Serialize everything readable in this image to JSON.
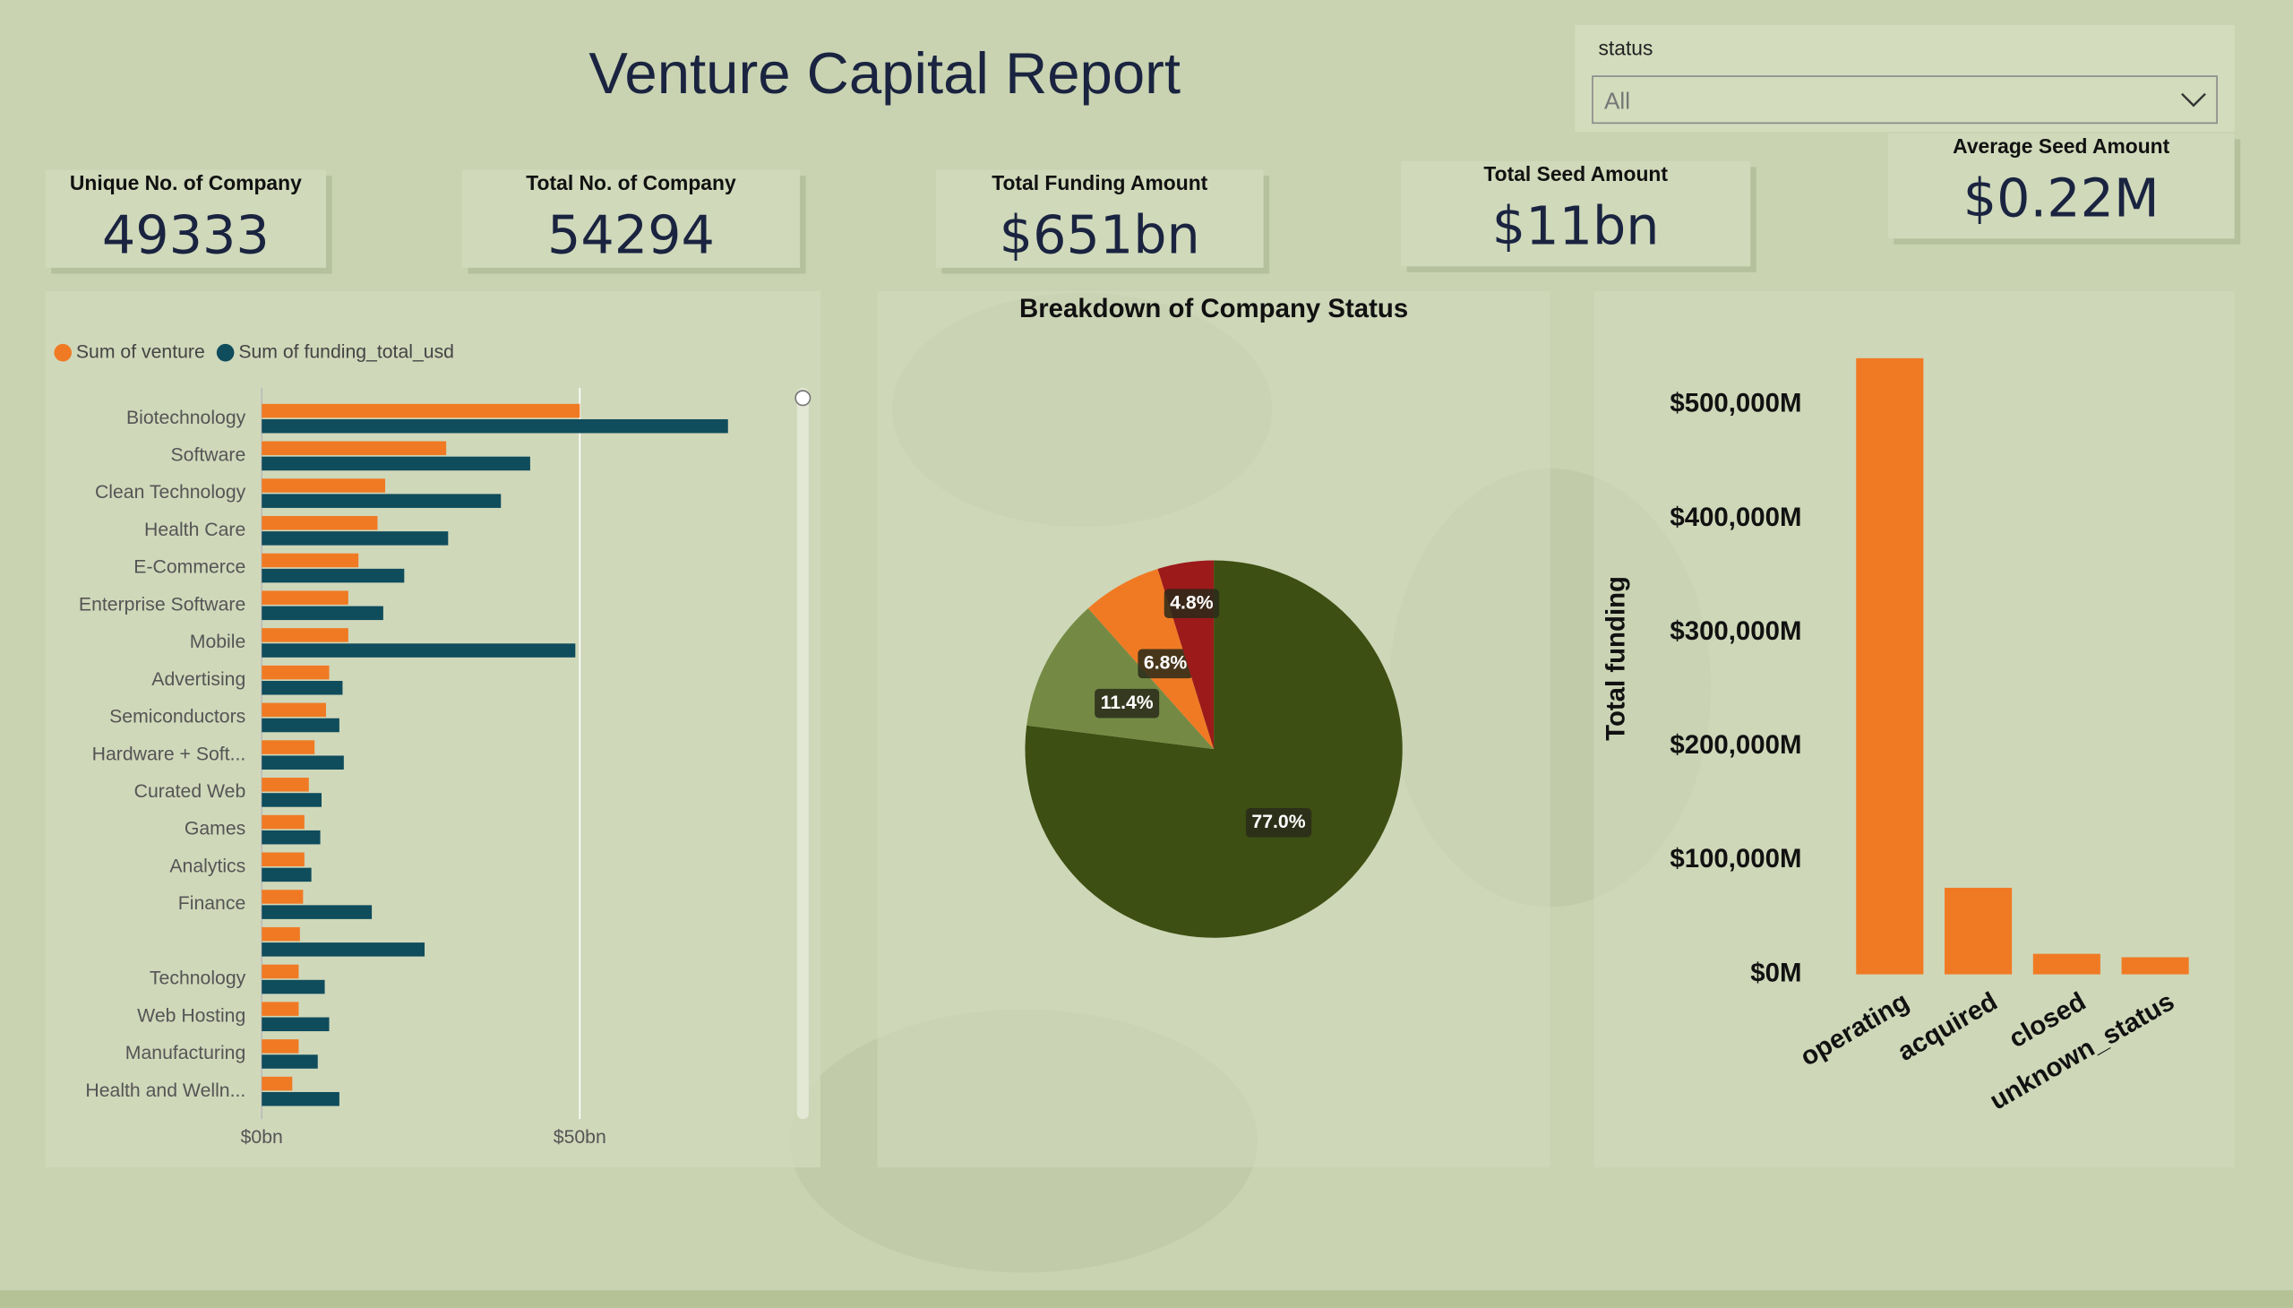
{
  "title": "Venture Capital Report",
  "slicer": {
    "label": "status",
    "value": "All"
  },
  "kpis": [
    {
      "label": "Unique No. of Company",
      "value": "49333"
    },
    {
      "label": "Total No. of Company",
      "value": "54294"
    },
    {
      "label": "Total Funding Amount",
      "value": "$651bn"
    },
    {
      "label": "Total Seed Amount",
      "value": "$11bn"
    },
    {
      "label": "Average Seed Amount",
      "value": "$0.22M"
    }
  ],
  "chart_data": [
    {
      "type": "barh",
      "categories": [
        "Biotechnology",
        "Software",
        "Clean Technology",
        "Health Care",
        "E-Commerce",
        "Enterprise Software",
        "Mobile",
        "Advertising",
        "Semiconductors",
        "Hardware + Soft...",
        "Curated Web",
        "Games",
        "Analytics",
        "Finance",
        null,
        "Technology",
        "Web Hosting",
        "Manufacturing",
        "Health and Welln..."
      ],
      "series": [
        {
          "name": "Sum of venture",
          "color": "#f07a24",
          "values": [
            50.0,
            29.0,
            19.4,
            18.2,
            15.2,
            13.6,
            13.6,
            10.6,
            10.1,
            8.3,
            7.4,
            6.7,
            6.7,
            6.5,
            6.0,
            5.8,
            5.8,
            5.8,
            4.8
          ]
        },
        {
          "name": "Sum of  funding_total_usd",
          "color": "#0f4c5c",
          "values": [
            73.3,
            42.2,
            37.6,
            29.3,
            22.4,
            19.1,
            49.3,
            12.7,
            12.2,
            12.9,
            9.4,
            9.2,
            7.8,
            17.3,
            25.6,
            9.9,
            10.6,
            8.8,
            12.2
          ]
        }
      ],
      "xlim": [
        0,
        83
      ],
      "xticks": [
        {
          "value": 0,
          "label": "$0bn"
        },
        {
          "value": 50,
          "label": "$50bn"
        }
      ],
      "grid": true
    },
    {
      "type": "pie",
      "title": "Breakdown of Company Status",
      "values": [
        77.0,
        11.4,
        6.8,
        4.8
      ],
      "value_labels": [
        "77.0%",
        "11.4%",
        "6.8%",
        "4.8%"
      ],
      "colors": [
        "#3d4f12",
        "#748a44",
        "#f07a24",
        "#9c1a1a"
      ]
    },
    {
      "type": "bar",
      "ylabel": "Total funding",
      "categories": [
        "operating",
        "acquired",
        "closed",
        "unknown_status"
      ],
      "values": [
        541000,
        76000,
        18000,
        15000
      ],
      "color": "#f07a24",
      "ylim": [
        0,
        560000
      ],
      "yticks": [
        {
          "value": 0,
          "label": "$0M"
        },
        {
          "value": 100000,
          "label": "$100,000M"
        },
        {
          "value": 200000,
          "label": "$200,000M"
        },
        {
          "value": 300000,
          "label": "$300,000M"
        },
        {
          "value": 400000,
          "label": "$400,000M"
        },
        {
          "value": 500000,
          "label": "$500,000M"
        }
      ]
    }
  ]
}
